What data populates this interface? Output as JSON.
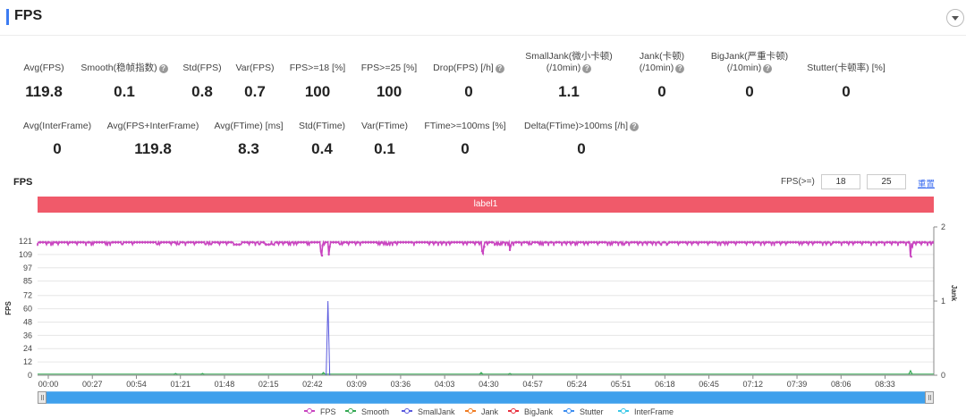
{
  "header": {
    "title": "FPS"
  },
  "metrics_row1": [
    {
      "label": "Avg(FPS)",
      "value": "119.8",
      "help": false
    },
    {
      "label": "Smooth(稳帧指数)",
      "value": "0.1",
      "help": true
    },
    {
      "label": "Std(FPS)",
      "value": "0.8",
      "help": false
    },
    {
      "label": "Var(FPS)",
      "value": "0.7",
      "help": false
    },
    {
      "label": "FPS>=18 [%]",
      "value": "100",
      "help": false
    },
    {
      "label": "FPS>=25 [%]",
      "value": "100",
      "help": false
    },
    {
      "label": "Drop(FPS) [/h]",
      "value": "0",
      "help": true
    },
    {
      "label": "SmallJank(微小卡顿)",
      "label2": "(/10min)",
      "value": "1.1",
      "help": true
    },
    {
      "label": "Jank(卡顿)",
      "label2": "(/10min)",
      "value": "0",
      "help": true
    },
    {
      "label": "BigJank(严重卡顿)",
      "label2": "(/10min)",
      "value": "0",
      "help": true
    },
    {
      "label": "Stutter(卡顿率) [%]",
      "value": "0",
      "help": false
    }
  ],
  "metrics_row2": [
    {
      "label": "Avg(InterFrame)",
      "value": "0",
      "help": false
    },
    {
      "label": "Avg(FPS+InterFrame)",
      "value": "119.8",
      "help": false
    },
    {
      "label": "Avg(FTime) [ms]",
      "value": "8.3",
      "help": false
    },
    {
      "label": "Std(FTime)",
      "value": "0.4",
      "help": false
    },
    {
      "label": "Var(FTime)",
      "value": "0.1",
      "help": false
    },
    {
      "label": "FTime>=100ms [%]",
      "value": "0",
      "help": false
    },
    {
      "label": "Delta(FTime)>100ms [/h]",
      "value": "0",
      "help": true
    }
  ],
  "chart_section": {
    "title": "FPS",
    "threshold_label": "FPS(>=)",
    "threshold_low": "18",
    "threshold_high": "25",
    "reset_label": "重置",
    "marker_label": "label1"
  },
  "chart_data": {
    "type": "line",
    "ylabel": "FPS",
    "y2label": "Jank",
    "yticks": [
      "0",
      "12",
      "24",
      "36",
      "48",
      "60",
      "72",
      "85",
      "97",
      "109",
      "121"
    ],
    "y2ticks": [
      "0",
      "1",
      "2"
    ],
    "ylim": [
      0,
      121
    ],
    "y2lim": [
      0,
      2
    ],
    "xlim": [
      "00:00",
      "08:53"
    ],
    "xticks": [
      "00:00",
      "00:27",
      "00:54",
      "01:21",
      "01:48",
      "02:15",
      "02:42",
      "03:09",
      "03:36",
      "04:03",
      "04:30",
      "04:57",
      "05:24",
      "05:51",
      "06:18",
      "06:45",
      "07:12",
      "07:39",
      "08:06",
      "08:33"
    ],
    "series": [
      {
        "name": "FPS",
        "color": "#c945c0",
        "baseline": 120,
        "dips": [
          [
            8,
            118
          ],
          [
            100,
            118
          ],
          [
            153,
            118
          ],
          [
            172,
            118
          ],
          [
            230,
            118
          ],
          [
            340,
            118
          ],
          [
            441,
            118
          ],
          [
            549,
            118
          ],
          [
            606,
            118
          ],
          [
            620,
            118
          ],
          [
            760,
            118
          ],
          [
            780,
            118
          ],
          [
            812,
            118
          ],
          [
            943,
            118
          ],
          [
            958,
            118
          ],
          [
            1063,
            118
          ],
          [
            1330,
            118
          ],
          [
            1338,
            118
          ],
          [
            1348,
            118
          ],
          [
            1360,
            118
          ],
          [
            1495,
            118
          ],
          [
            1550,
            118
          ],
          [
            1575,
            118
          ],
          [
            1577,
            118
          ],
          [
            1580,
            118
          ],
          [
            1584,
            118
          ],
          [
            1588,
            118
          ],
          [
            1650,
            118
          ],
          [
            1750,
            118
          ],
          [
            1870,
            118
          ],
          [
            1880,
            118
          ],
          [
            1911,
            118
          ],
          [
            1933,
            118
          ],
          [
            1940,
            118
          ],
          [
            1944,
            118
          ],
          [
            2032,
            118
          ],
          [
            2115,
            118
          ],
          [
            2192,
            118
          ],
          [
            2200,
            118
          ],
          [
            2205,
            118
          ],
          [
            2210,
            118
          ],
          [
            2217,
            118
          ],
          [
            2224,
            118
          ],
          [
            2236,
            118
          ],
          [
            2241,
            118
          ],
          [
            2245,
            118
          ],
          [
            2250,
            118
          ],
          [
            2254,
            118
          ],
          [
            2258,
            118
          ],
          [
            2264,
            118
          ],
          [
            2275,
            118
          ],
          [
            2360,
            118
          ],
          [
            2430,
            118
          ],
          [
            2475,
            118
          ],
          [
            2486,
            118
          ],
          [
            2549,
            118
          ],
          [
            2558,
            118
          ],
          [
            2563,
            118
          ],
          [
            2573,
            118
          ],
          [
            2580,
            118
          ],
          [
            2593,
            118
          ],
          [
            2600,
            118
          ],
          [
            2623,
            118
          ],
          [
            2630,
            118
          ],
          [
            2649,
            118
          ],
          [
            2690,
            118
          ],
          [
            2740,
            118
          ],
          [
            2801,
            118
          ],
          [
            2809,
            118
          ],
          [
            2822,
            118
          ],
          [
            2861,
            118
          ],
          [
            2890,
            118
          ],
          [
            3010,
            118
          ],
          [
            3031,
            118
          ],
          [
            3200,
            118
          ],
          [
            3370,
            118
          ],
          [
            3380,
            118
          ],
          [
            3400,
            118
          ],
          [
            3476,
            118
          ],
          [
            3550,
            118
          ],
          [
            3600,
            118
          ],
          [
            3800,
            118
          ],
          [
            3825,
            118
          ],
          [
            3868,
            118
          ],
          [
            3880,
            118
          ],
          [
            3900,
            118
          ],
          [
            3917,
            118
          ],
          [
            3930,
            118
          ],
          [
            3960,
            118
          ],
          [
            4010,
            118
          ],
          [
            4019,
            118
          ],
          [
            4200,
            118
          ],
          [
            4370,
            118
          ],
          [
            4420,
            118
          ],
          [
            4470,
            118
          ],
          [
            4510,
            118
          ],
          [
            4560,
            118
          ],
          [
            4600,
            118
          ],
          [
            4750,
            118
          ],
          [
            4790,
            118
          ],
          [
            4880,
            118
          ],
          [
            4930,
            118
          ],
          [
            5020,
            118
          ],
          [
            5100,
            118
          ],
          [
            5110,
            118
          ],
          [
            5117,
            118
          ],
          [
            5130,
            118
          ],
          [
            5150,
            118
          ],
          [
            5160,
            118
          ],
          [
            5180,
            118
          ],
          [
            5220,
            118
          ],
          [
            5250,
            118
          ],
          [
            5310,
            118
          ],
          [
            5400,
            118
          ],
          [
            5480,
            118
          ],
          [
            5500,
            118
          ],
          [
            5510,
            118
          ],
          [
            5600,
            118
          ],
          [
            5620,
            118
          ],
          [
            5640,
            118
          ],
          [
            5700,
            118
          ],
          [
            5760,
            118
          ],
          [
            5850,
            118
          ],
          [
            5900,
            118
          ],
          [
            5950,
            118
          ],
          [
            6000,
            118
          ],
          [
            6020,
            118
          ],
          [
            6100,
            118
          ],
          [
            6145,
            118
          ],
          [
            6250,
            118
          ],
          [
            6360,
            118
          ],
          [
            6367,
            118
          ],
          [
            6392,
            118
          ],
          [
            6413,
            118
          ],
          [
            6480,
            118
          ],
          [
            6529,
            118
          ],
          [
            6544,
            118
          ],
          [
            6552,
            118
          ],
          [
            6606,
            118
          ],
          [
            6700,
            118
          ],
          [
            6750,
            118
          ],
          [
            6800,
            118
          ],
          [
            6806,
            118
          ],
          [
            6860,
            118
          ],
          [
            6902,
            118
          ],
          [
            6950,
            118
          ],
          [
            6961,
            118
          ],
          [
            7022,
            118
          ],
          [
            7031,
            118
          ],
          [
            7157,
            118
          ],
          [
            7253,
            118
          ],
          [
            7308,
            118
          ],
          [
            7377,
            118
          ],
          [
            7480,
            118
          ],
          [
            7596,
            118
          ],
          [
            7623,
            118
          ],
          [
            7677,
            118
          ],
          [
            7702,
            118
          ],
          [
            7790,
            118
          ],
          [
            7910,
            118
          ],
          [
            7990,
            118
          ],
          [
            8070,
            118
          ],
          [
            8112,
            118
          ],
          [
            8195,
            118
          ],
          [
            8222,
            118
          ],
          [
            8290,
            118
          ],
          [
            8350,
            118
          ],
          [
            8500,
            118
          ],
          [
            8530,
            118
          ],
          [
            8600,
            118
          ],
          [
            8650,
            118
          ],
          [
            8760,
            118
          ],
          [
            8801,
            118
          ],
          [
            8852,
            118
          ],
          [
            8866,
            118
          ],
          [
            8971,
            118
          ],
          [
            9050,
            118
          ],
          [
            9106,
            118
          ],
          [
            9204,
            118
          ],
          [
            9300,
            118
          ],
          [
            9362,
            118
          ],
          [
            9450,
            118
          ],
          [
            9532,
            118
          ],
          [
            9600,
            118
          ],
          [
            9698,
            118
          ],
          [
            9756,
            118
          ],
          [
            9800,
            118
          ],
          [
            9869,
            118
          ],
          [
            9930,
            118
          ],
          [
            9970,
            118
          ]
        ],
        "deep_dips": [
          [
            3163,
            112
          ],
          [
            3174,
            108
          ],
          [
            3180,
            117
          ],
          [
            3250,
            109
          ],
          [
            3260,
            116
          ],
          [
            4960,
            112
          ],
          [
            4970,
            110
          ],
          [
            4985,
            116
          ],
          [
            5270,
            113
          ],
          [
            5280,
            117
          ],
          [
            9740,
            113
          ],
          [
            9748,
            107
          ],
          [
            9760,
            116
          ]
        ]
      },
      {
        "name": "Smooth",
        "color": "#35a853"
      },
      {
        "name": "SmallJank",
        "color": "#5a5ade",
        "spikes_jank_units": [
          [
            3240,
            1.0
          ]
        ]
      },
      {
        "name": "Jank",
        "color": "#f07c22"
      },
      {
        "name": "BigJank",
        "color": "#e8303d"
      },
      {
        "name": "Stutter",
        "color": "#3d8ef0"
      },
      {
        "name": "InterFrame",
        "color": "#39c8e8"
      }
    ]
  },
  "slider": {
    "start": "00:00",
    "end": "08:53"
  }
}
